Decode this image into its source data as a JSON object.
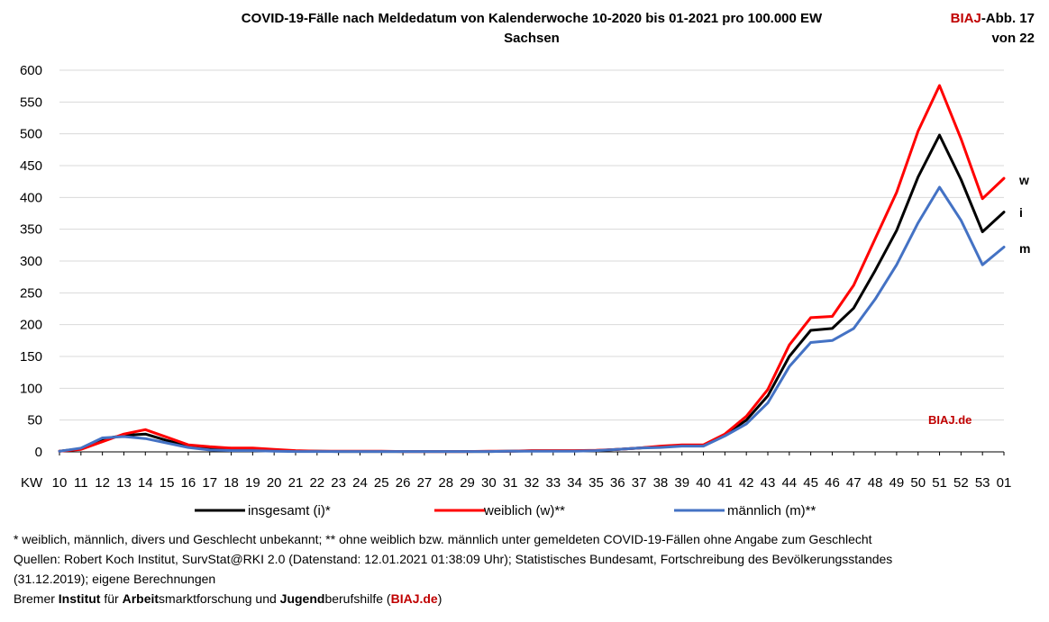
{
  "header": {
    "title_line1": "COVID-19-Fälle nach Meldedatum von Kalenderwoche 10-2020 bis 01-2021 pro 100.000 EW",
    "title_line2": "Sachsen",
    "badge_brand": "BIAJ",
    "badge_rest": "-Abb. 17",
    "badge_line2": "von 22"
  },
  "chart_data": {
    "type": "line",
    "title": "COVID-19-Fälle nach Meldedatum von Kalenderwoche 10-2020 bis 01-2021 pro 100.000 EW",
    "subtitle": "Sachsen",
    "xlabel": "KW",
    "ylabel": "",
    "ylim": [
      0,
      600
    ],
    "yticks": [
      0,
      50,
      100,
      150,
      200,
      250,
      300,
      350,
      400,
      450,
      500,
      550,
      600
    ],
    "categories": [
      "10",
      "11",
      "12",
      "13",
      "14",
      "15",
      "16",
      "17",
      "18",
      "19",
      "20",
      "21",
      "22",
      "23",
      "24",
      "25",
      "26",
      "27",
      "28",
      "29",
      "30",
      "31",
      "32",
      "33",
      "34",
      "35",
      "36",
      "37",
      "38",
      "39",
      "40",
      "41",
      "42",
      "43",
      "44",
      "45",
      "46",
      "47",
      "48",
      "49",
      "50",
      "51",
      "52",
      "53",
      "01"
    ],
    "series": [
      {
        "name": "insgesamt (i)*",
        "color": "#000000",
        "end_label": "i",
        "values": [
          1,
          5,
          20,
          26,
          28,
          18,
          9,
          5,
          4,
          4,
          3,
          1,
          1,
          0.5,
          0.5,
          0.5,
          0.5,
          0.5,
          0.5,
          0.5,
          0.5,
          1,
          1.5,
          1.5,
          1.5,
          2,
          4,
          6,
          8,
          10,
          10,
          27,
          50,
          88,
          150,
          191,
          194,
          226,
          285,
          348,
          432,
          498,
          428,
          346,
          377
        ]
      },
      {
        "name": "weiblich (w)**",
        "color": "#ff0000",
        "end_label": "w",
        "values": [
          1,
          4,
          16,
          28,
          35,
          23,
          11,
          8,
          6,
          6,
          4,
          2,
          1,
          1,
          1,
          1,
          0.5,
          0.5,
          0.5,
          0.5,
          1,
          1,
          2,
          2,
          2,
          2.5,
          4,
          6,
          9,
          11,
          11,
          28,
          56,
          98,
          168,
          211,
          213,
          262,
          335,
          408,
          504,
          576,
          492,
          398,
          430
        ]
      },
      {
        "name": "männlich (m)**",
        "color": "#4472c4",
        "end_label": "m",
        "values": [
          1,
          6,
          22,
          24,
          21,
          14,
          7,
          3,
          2,
          2,
          1,
          0.5,
          0.5,
          0.5,
          0.5,
          0.5,
          0.5,
          0.5,
          0.5,
          0.5,
          0.5,
          1,
          1,
          1,
          1,
          2,
          4,
          6,
          7,
          9,
          9,
          25,
          44,
          77,
          134,
          172,
          175,
          194,
          240,
          294,
          360,
          416,
          364,
          294,
          322
        ]
      }
    ],
    "watermark": "BIAJ.de"
  },
  "notes": {
    "line1": "* weiblich, männlich, divers und Geschlecht unbekannt; ** ohne weiblich bzw. männlich unter gemeldeten COVID-19-Fällen ohne Angabe zum Geschlecht",
    "line2": "Quellen: Robert Koch Institut, SurvStat@RKI 2.0 (Datenstand: 12.01.2021 01:38:09 Uhr); Statistisches Bundesamt, Fortschreibung des Bevölkerungsstandes",
    "line3": "(31.12.2019); eigene Berechnungen",
    "footer": {
      "p1": "Bremer ",
      "b1": "Institut",
      "p2": " für ",
      "b2": "Arbeit",
      "p3": "smarktforschung und ",
      "b3": "Jugend",
      "p4": "berufshilfe (",
      "brand": "BIAJ.de",
      "p5": ")"
    }
  }
}
